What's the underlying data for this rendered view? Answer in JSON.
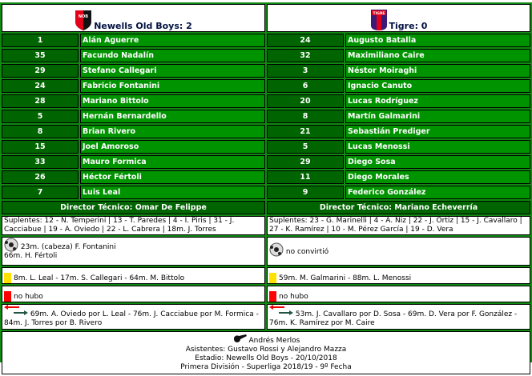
{
  "home": {
    "title": "Newells Old Boys: 2",
    "badge_text": "NOB",
    "players": [
      {
        "n": "1",
        "name": "Alán Aguerre"
      },
      {
        "n": "35",
        "name": "Facundo Nadalín"
      },
      {
        "n": "29",
        "name": "Stefano Callegari"
      },
      {
        "n": "24",
        "name": "Fabricio Fontanini"
      },
      {
        "n": "28",
        "name": "Mariano Bittolo"
      },
      {
        "n": "5",
        "name": "Hernán Bernardello"
      },
      {
        "n": "8",
        "name": "Brian Rivero"
      },
      {
        "n": "15",
        "name": "Joel Amoroso"
      },
      {
        "n": "33",
        "name": "Mauro Formica"
      },
      {
        "n": "26",
        "name": "Héctor Fértoli"
      },
      {
        "n": "7",
        "name": "Luis Leal"
      }
    ],
    "coach": "Director Técnico: Omar De Felippe",
    "subs": "Suplentes: 12 - N. Temperini | 13 - T. Paredes | 4 - I. Piris | 31 - J. Cacciabue | 19 - A. Oviedo | 22 - L. Cabrera | 18m. J. Torres",
    "goals_1": "23m. (cabeza) F. Fontanini",
    "goals_2": "66m. H. Fértoli",
    "yellow": "8m. L. Leal - 17m. S. Callegari - 64m. M. Bittolo",
    "red": "no hubo",
    "changes": "69m. A. Oviedo por L. Leal - 76m. J. Cacciabue por M. Formica - 84m. J. Torres por B. Rivero"
  },
  "away": {
    "title": "Tigre: 0",
    "badge_text": "TIGRE",
    "players": [
      {
        "n": "24",
        "name": "Augusto Batalla"
      },
      {
        "n": "32",
        "name": "Maximiliano Caire"
      },
      {
        "n": "3",
        "name": "Néstor Moiraghi"
      },
      {
        "n": "6",
        "name": "Ignacio Canuto"
      },
      {
        "n": "20",
        "name": "Lucas Rodríguez"
      },
      {
        "n": "8",
        "name": "Martín Galmarini"
      },
      {
        "n": "21",
        "name": "Sebastián Prediger"
      },
      {
        "n": "5",
        "name": "Lucas Menossi"
      },
      {
        "n": "29",
        "name": "Diego Sosa"
      },
      {
        "n": "11",
        "name": "Diego Morales"
      },
      {
        "n": "9",
        "name": "Federico González"
      }
    ],
    "coach": "Director Técnico: Mariano Echeverría",
    "subs": "Suplentes: 23 - G. Marinelli | 4 - A. Niz | 22 - J. Ortiz | 15 - J. Cavallaro | 27 - K. Ramírez | 10 - M. Pérez García | 19 - D. Vera",
    "goals_1": "no convirtió",
    "goals_2": "",
    "yellow": "59m. M. Galmarini - 88m. L. Menossi",
    "red": "no hubo",
    "changes": "53m. J. Cavallaro por D. Sosa - 69m. D. Vera por F. González - 76m. K. Ramírez por M. Caire"
  },
  "footer": {
    "referee": "Andrés Merlos",
    "assistants": "Asistentes: Gustavo Rossi y Alejandro Mazza",
    "stadium": "Estadio: Newells Old Boys - 20/10/2018",
    "tournament": "Primera División - Superliga 2018/19 - 9º Fecha"
  },
  "colors": {
    "background": "#108a10",
    "number_cell": "#006400",
    "name_cell": "#009300",
    "yellow_card": "#ffe000",
    "red_card": "#ff0000"
  }
}
